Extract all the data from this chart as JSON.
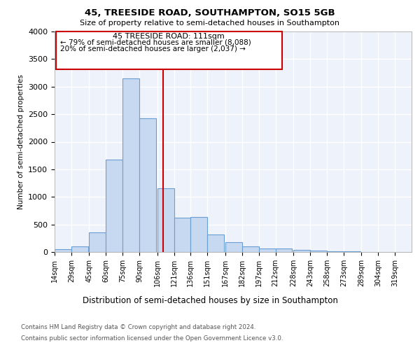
{
  "title": "45, TREESIDE ROAD, SOUTHAMPTON, SO15 5GB",
  "subtitle": "Size of property relative to semi-detached houses in Southampton",
  "xlabel": "Distribution of semi-detached houses by size in Southampton",
  "ylabel": "Number of semi-detached properties",
  "property_label": "45 TREESIDE ROAD: 111sqm",
  "pct_smaller": 79,
  "pct_larger": 20,
  "n_smaller": 8088,
  "n_larger": 2037,
  "categories": [
    "14sqm",
    "29sqm",
    "45sqm",
    "60sqm",
    "75sqm",
    "90sqm",
    "106sqm",
    "121sqm",
    "136sqm",
    "151sqm",
    "167sqm",
    "182sqm",
    "197sqm",
    "212sqm",
    "228sqm",
    "243sqm",
    "258sqm",
    "273sqm",
    "289sqm",
    "304sqm",
    "319sqm"
  ],
  "bar_left_edges": [
    14,
    29,
    45,
    60,
    75,
    90,
    106,
    121,
    136,
    151,
    167,
    182,
    197,
    212,
    228,
    243,
    258,
    273,
    289,
    304,
    319
  ],
  "bar_heights": [
    55,
    100,
    360,
    1680,
    3150,
    2430,
    1160,
    620,
    630,
    320,
    175,
    105,
    65,
    60,
    35,
    20,
    10,
    8,
    5,
    3,
    0
  ],
  "bin_width": 15,
  "bar_color": "#c6d9f0",
  "bar_edge_color": "#6b9fd4",
  "vline_x": 111,
  "vline_color": "#cc0000",
  "annotation_box_color": "#cc0000",
  "ylim": [
    0,
    4000
  ],
  "yticks": [
    0,
    500,
    1000,
    1500,
    2000,
    2500,
    3000,
    3500,
    4000
  ],
  "xlim": [
    14,
    334
  ],
  "bg_color": "#eef2fb",
  "grid_color": "#ffffff",
  "footer_line1": "Contains HM Land Registry data © Crown copyright and database right 2024.",
  "footer_line2": "Contains public sector information licensed under the Open Government Licence v3.0."
}
